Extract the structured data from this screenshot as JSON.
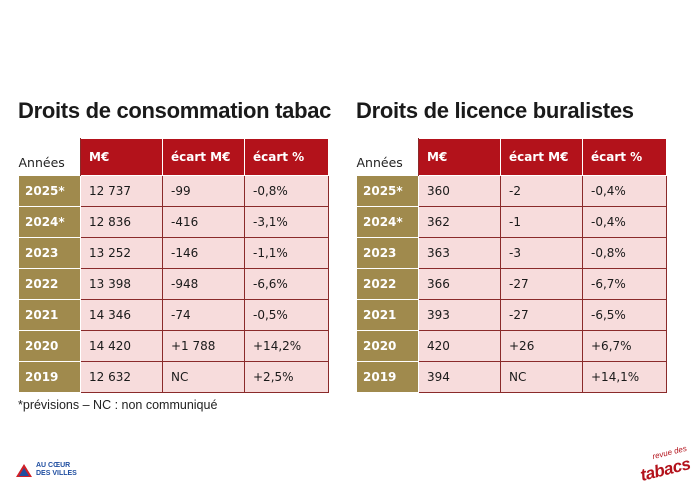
{
  "left": {
    "title": "Droits de consommation tabac",
    "headers": {
      "year": "Années",
      "me": "M€",
      "ecart_me": "écart M€",
      "ecart_pct": "écart %"
    },
    "rows": [
      {
        "year": "2025*",
        "me": "12 737",
        "ecart_me": "-99",
        "ecart_pct": "-0,8%"
      },
      {
        "year": "2024*",
        "me": "12 836",
        "ecart_me": "-416",
        "ecart_pct": "-3,1%"
      },
      {
        "year": "2023",
        "me": "13 252",
        "ecart_me": "-146",
        "ecart_pct": "-1,1%"
      },
      {
        "year": "2022",
        "me": "13 398",
        "ecart_me": "-948",
        "ecart_pct": "-6,6%"
      },
      {
        "year": "2021",
        "me": "14 346",
        "ecart_me": "-74",
        "ecart_pct": "-0,5%"
      },
      {
        "year": "2020",
        "me": "14 420",
        "ecart_me": "+1 788",
        "ecart_pct": "+14,2%"
      },
      {
        "year": "2019",
        "me": "12 632",
        "ecart_me": "NC",
        "ecart_pct": "+2,5%"
      }
    ]
  },
  "right": {
    "title": "Droits de licence buralistes",
    "headers": {
      "year": "Années",
      "me": "M€",
      "ecart_me": "écart M€",
      "ecart_pct": "écart %"
    },
    "rows": [
      {
        "year": "2025*",
        "me": "360",
        "ecart_me": "-2",
        "ecart_pct": "-0,4%"
      },
      {
        "year": "2024*",
        "me": "362",
        "ecart_me": "-1",
        "ecart_pct": "-0,4%"
      },
      {
        "year": "2023",
        "me": "363",
        "ecart_me": "-3",
        "ecart_pct": "-0,8%"
      },
      {
        "year": "2022",
        "me": "366",
        "ecart_me": "-27",
        "ecart_pct": "-6,7%"
      },
      {
        "year": "2021",
        "me": "393",
        "ecart_me": "-27",
        "ecart_pct": "-6,5%"
      },
      {
        "year": "2020",
        "me": "420",
        "ecart_me": "+26",
        "ecart_pct": "+6,7%"
      },
      {
        "year": "2019",
        "me": "394",
        "ecart_me": "NC",
        "ecart_pct": "+14,1%"
      }
    ]
  },
  "footnote": "*prévisions – NC : non communiqué",
  "logos": {
    "left_line1": "AU CŒUR",
    "left_line2": "DES VILLES",
    "right_small": "revue des",
    "right_big": "tabacs"
  },
  "colors": {
    "header_red": "#b3121b",
    "year_gold": "#a08a4d",
    "cell_pink": "#f7dcdc"
  }
}
